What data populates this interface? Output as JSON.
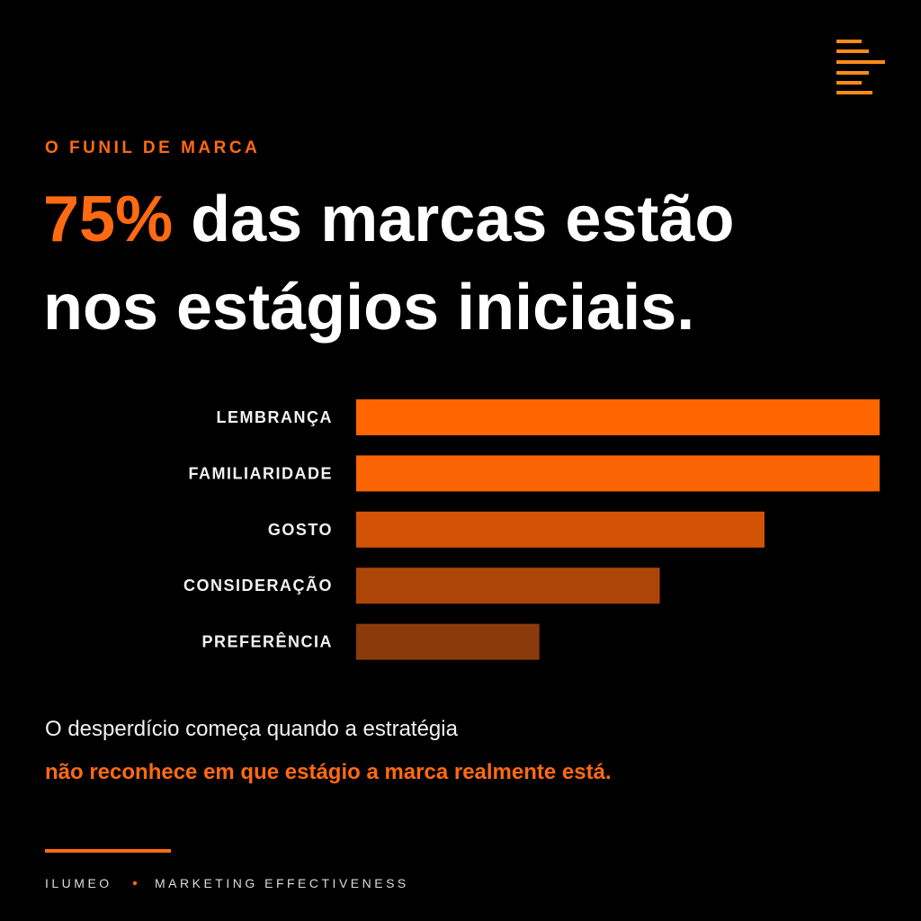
{
  "kicker": "O FUNIL DE MARCA",
  "headline": {
    "highlight": "75%",
    "line1_rest": "das marcas estão",
    "line2": "nos estágios iniciais."
  },
  "chart_data": {
    "type": "bar",
    "orientation": "horizontal",
    "categories": [
      "LEMBRANÇA",
      "FAMILIARIDADE",
      "GOSTO",
      "CONSIDERAÇÃO",
      "PREFERÊNCIA"
    ],
    "values": [
      100,
      100,
      78,
      58,
      35
    ],
    "colors": [
      "#ff6600",
      "#fb6402",
      "#d35306",
      "#ae4508",
      "#8b3a0b"
    ],
    "xlim": [
      0,
      100
    ]
  },
  "body": {
    "line1": "O desperdício começa quando a estratégia",
    "line2": "não reconhece em que estágio a marca realmente está."
  },
  "footer": {
    "brand": "ILUMEO",
    "tagline": "MARKETING EFFECTIVENESS"
  }
}
